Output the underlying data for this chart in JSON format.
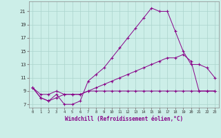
{
  "bg_color": "#cceee8",
  "line_color": "#880088",
  "grid_color": "#aad4cc",
  "ylabel_ticks": [
    7,
    9,
    11,
    13,
    15,
    17,
    19,
    21
  ],
  "xlabel_ticks": [
    0,
    1,
    2,
    3,
    4,
    5,
    6,
    7,
    8,
    9,
    10,
    11,
    12,
    13,
    14,
    15,
    16,
    17,
    18,
    19,
    20,
    21,
    22,
    23
  ],
  "xlabel_label": "Windchill (Refroidissement éolien,°C)",
  "xlim": [
    -0.5,
    23.5
  ],
  "ylim": [
    6.5,
    22.5
  ],
  "series1_x": [
    0,
    1,
    2,
    3,
    4,
    5,
    6,
    7,
    8,
    9,
    10,
    11,
    12,
    13,
    14,
    15,
    16,
    17,
    18,
    19,
    20,
    21,
    22,
    23
  ],
  "series1_y": [
    9.5,
    8.0,
    7.5,
    8.5,
    7.0,
    7.0,
    7.5,
    10.5,
    11.5,
    12.5,
    14.0,
    15.5,
    17.0,
    18.5,
    20.0,
    21.5,
    21.0,
    21.0,
    18.0,
    15.0,
    13.0,
    13.0,
    12.5,
    11.0
  ],
  "series2_x": [
    0,
    1,
    2,
    3,
    4,
    5,
    6,
    7,
    8,
    9,
    10,
    11,
    12,
    13,
    14,
    15,
    16,
    17,
    18,
    19,
    20,
    21,
    22,
    23
  ],
  "series2_y": [
    9.5,
    8.0,
    7.5,
    8.0,
    8.5,
    8.5,
    8.5,
    9.0,
    9.5,
    10.0,
    10.5,
    11.0,
    11.5,
    12.0,
    12.5,
    13.0,
    13.5,
    14.0,
    14.0,
    14.5,
    13.5,
    9.0,
    9.0,
    9.0
  ],
  "series3_x": [
    0,
    1,
    2,
    3,
    4,
    5,
    6,
    7,
    8,
    9,
    10,
    11,
    12,
    13,
    14,
    15,
    16,
    17,
    18,
    19,
    20,
    21,
    22,
    23
  ],
  "series3_y": [
    9.5,
    8.5,
    8.5,
    9.0,
    8.5,
    8.5,
    8.5,
    9.0,
    9.0,
    9.0,
    9.0,
    9.0,
    9.0,
    9.0,
    9.0,
    9.0,
    9.0,
    9.0,
    9.0,
    9.0,
    9.0,
    9.0,
    9.0,
    9.0
  ]
}
